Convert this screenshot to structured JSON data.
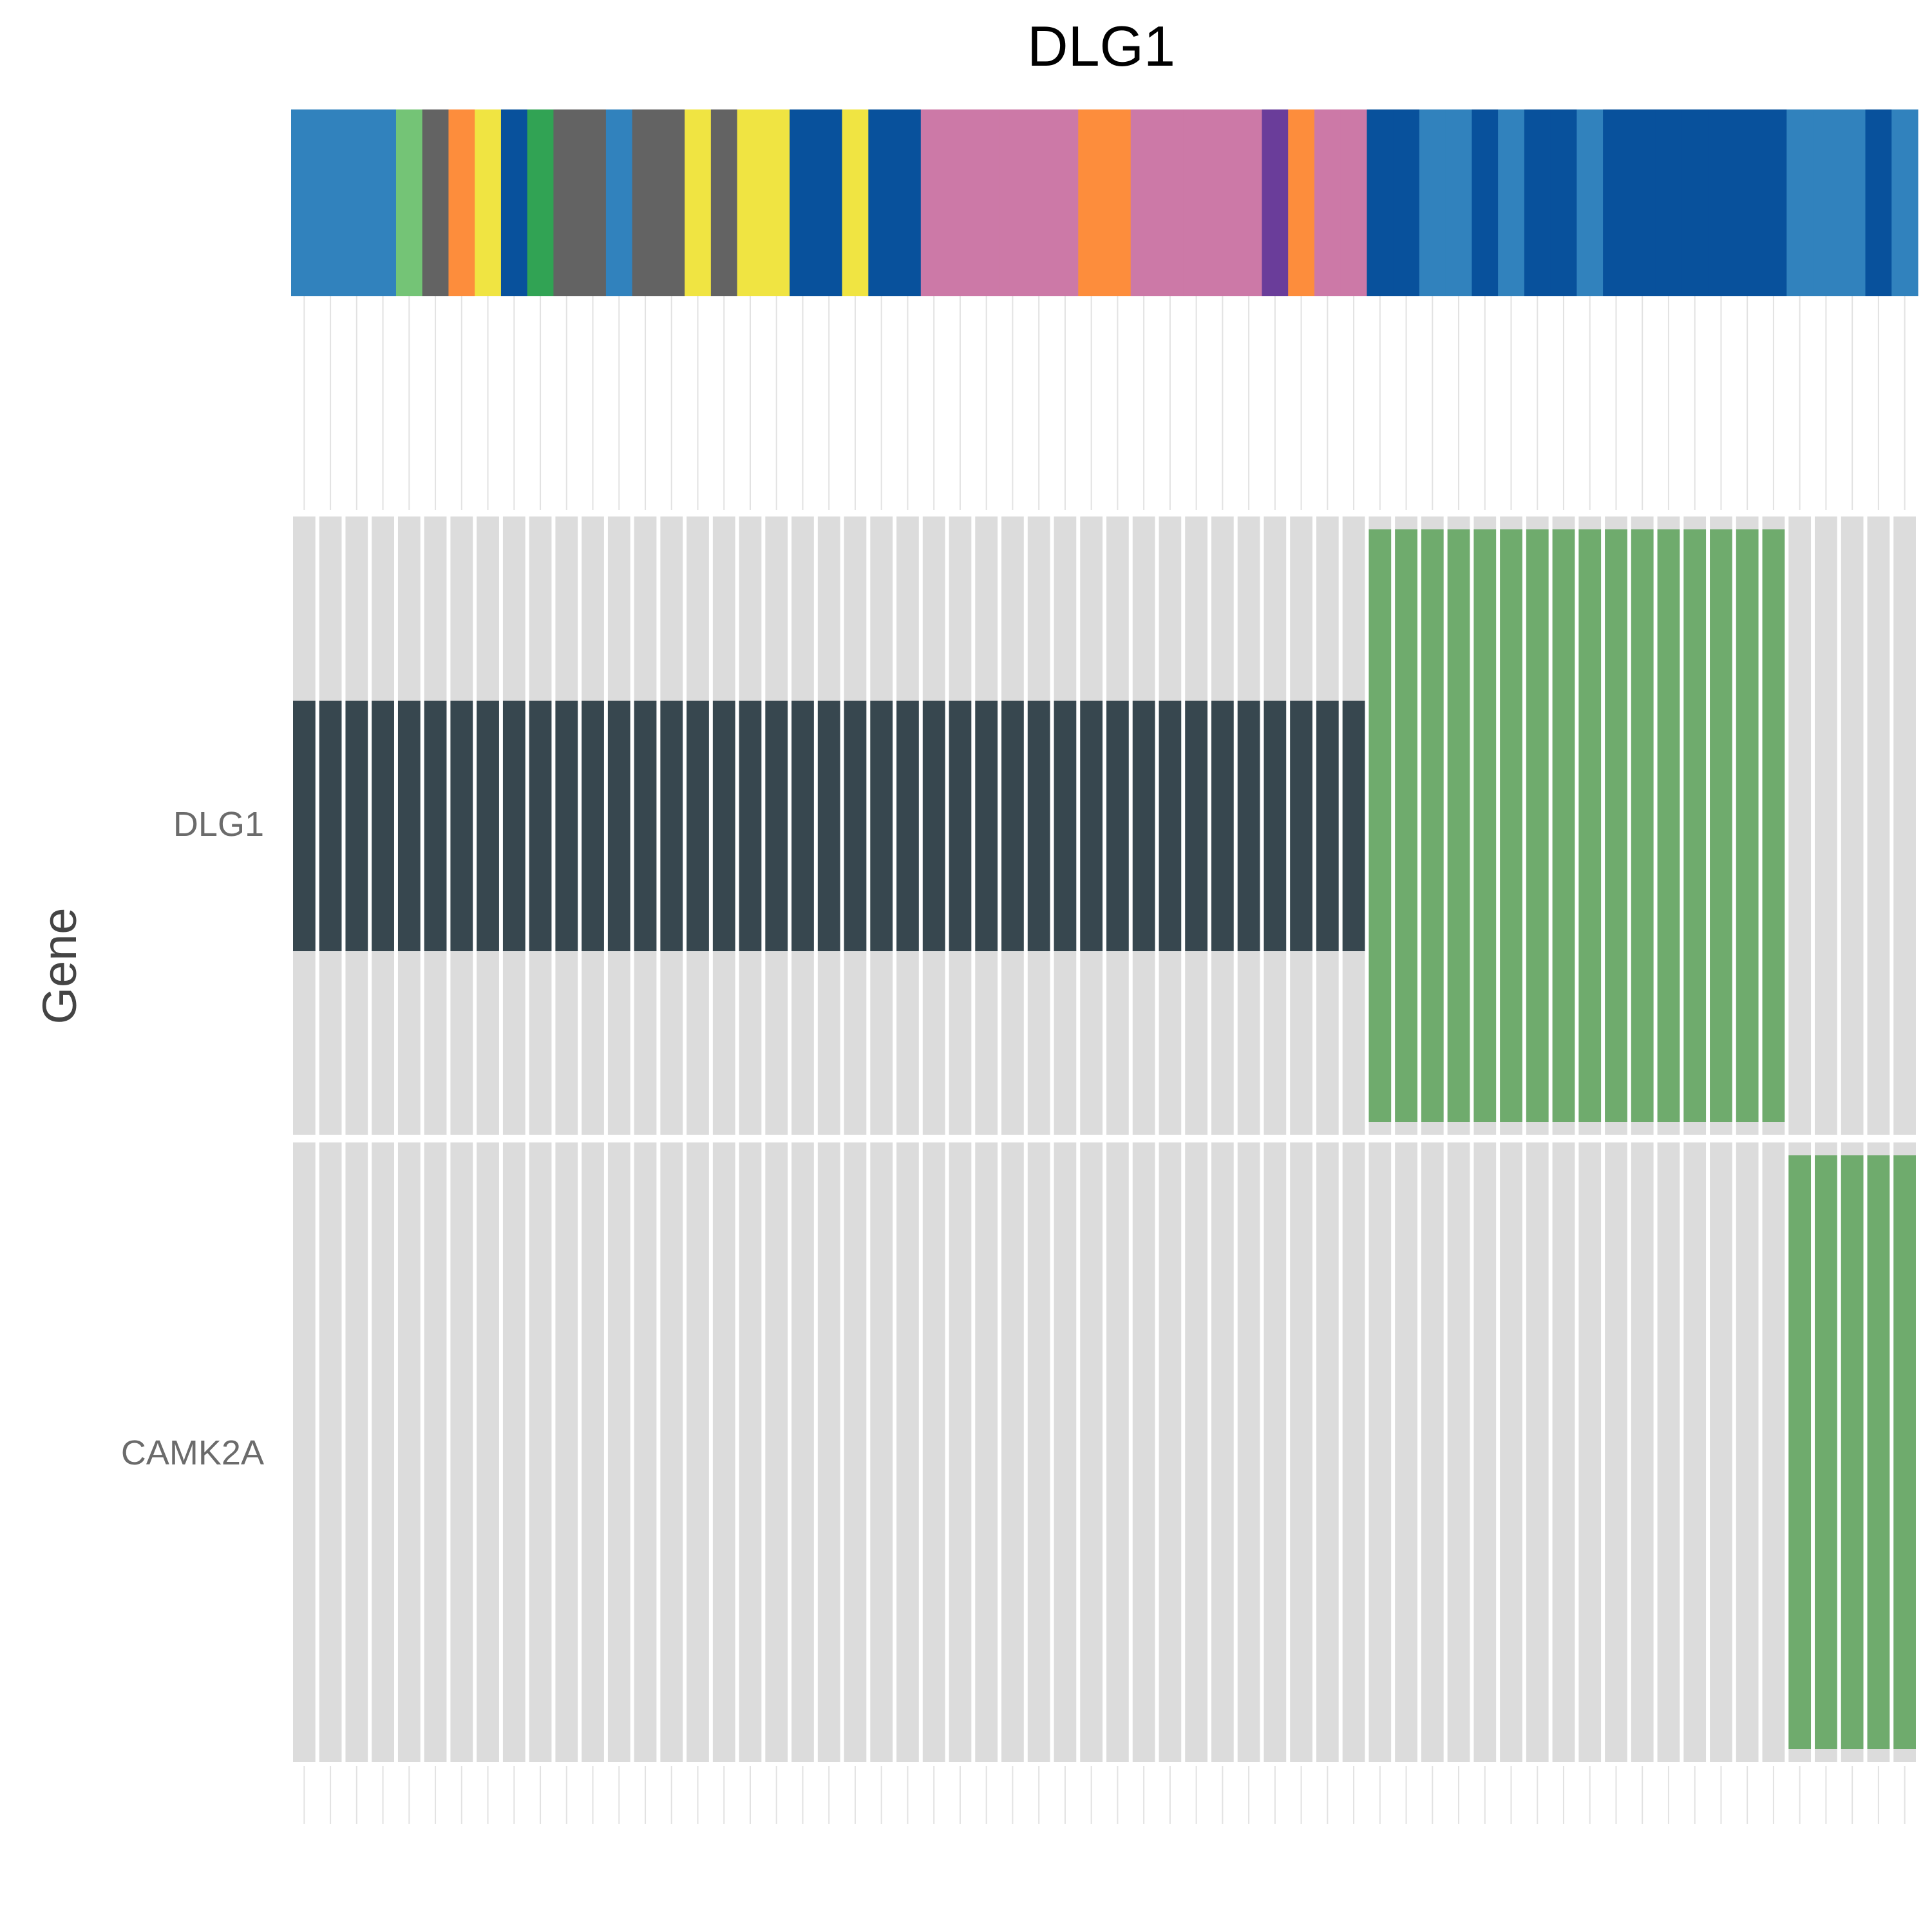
{
  "chart_data": {
    "type": "heatmap",
    "title": "DLG1",
    "ylabel": "Gene",
    "genes": [
      "DLG1",
      "CAMK2A"
    ],
    "n_samples": 62,
    "annotation_colors": [
      "#3182bd",
      "#3182bd",
      "#3182bd",
      "#3182bd",
      "#74c476",
      "#636363",
      "#fd8d3c",
      "#f0e442",
      "#08519c",
      "#31a354",
      "#636363",
      "#636363",
      "#3182bd",
      "#636363",
      "#636363",
      "#f0e442",
      "#636363",
      "#f0e442",
      "#f0e442",
      "#08519c",
      "#08519c",
      "#f0e442",
      "#08519c",
      "#08519c",
      "#cc79a7",
      "#cc79a7",
      "#cc79a7",
      "#cc79a7",
      "#cc79a7",
      "#cc79a7",
      "#fd8d3c",
      "#fd8d3c",
      "#cc79a7",
      "#cc79a7",
      "#cc79a7",
      "#cc79a7",
      "#cc79a7",
      "#6a3d9a",
      "#fd8d3c",
      "#cc79a7",
      "#cc79a7",
      "#08519c",
      "#08519c",
      "#3182bd",
      "#3182bd",
      "#08519c",
      "#3182bd",
      "#08519c",
      "#08519c",
      "#3182bd",
      "#08519c",
      "#08519c",
      "#08519c",
      "#08519c",
      "#08519c",
      "#08519c",
      "#08519c",
      "#3182bd",
      "#3182bd",
      "#3182bd",
      "#08519c",
      "#3182bd"
    ],
    "alterations": {
      "DLG1": {
        "inframe_samples": [
          0,
          41
        ],
        "full_samples": [
          41,
          57
        ]
      },
      "CAMK2A": {
        "full_samples": [
          57,
          62
        ]
      }
    },
    "colors": {
      "background_tile": "#dcdcdc",
      "inframe": "#37474f",
      "alteration": "#6fab6d",
      "text": "#000000",
      "gene_label": "#6b6b6b",
      "gridline": "#e2e2e2"
    }
  }
}
